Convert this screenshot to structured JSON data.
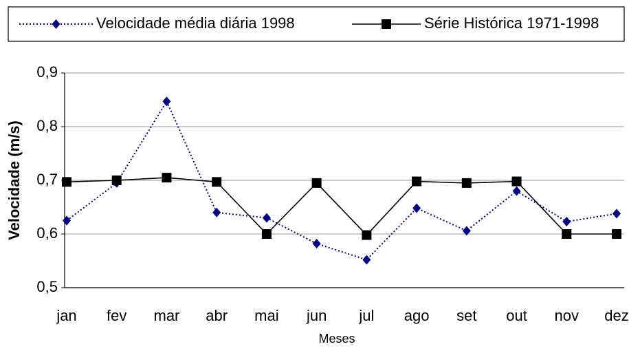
{
  "chart_data": {
    "type": "line",
    "x_label": "Meses",
    "y_label": "Velocidade (m/s)",
    "categories": [
      "jan",
      "fev",
      "mar",
      "abr",
      "mai",
      "jun",
      "jul",
      "ago",
      "set",
      "out",
      "nov",
      "dez"
    ],
    "series": [
      {
        "name": "Velocidade média diária 1998",
        "color": "#000080",
        "marker": "diamond",
        "dashed": true,
        "values": [
          0.625,
          0.695,
          0.847,
          0.64,
          0.63,
          0.582,
          0.552,
          0.648,
          0.606,
          0.68,
          0.623,
          0.638
        ]
      },
      {
        "name": "Série Histórica 1971-1998",
        "color": "#000000",
        "marker": "square",
        "dashed": false,
        "values": [
          0.697,
          0.7,
          0.705,
          0.697,
          0.6,
          0.695,
          0.598,
          0.698,
          0.695,
          0.698,
          0.6,
          0.6
        ]
      }
    ],
    "ylim": [
      0.5,
      0.9
    ],
    "yticks": [
      {
        "value": 0.5,
        "label": "0,5"
      },
      {
        "value": 0.6,
        "label": "0,6"
      },
      {
        "value": 0.7,
        "label": "0,7"
      },
      {
        "value": 0.8,
        "label": "0,8"
      },
      {
        "value": 0.9,
        "label": "0,9"
      }
    ],
    "grid": true,
    "legend": "top"
  }
}
